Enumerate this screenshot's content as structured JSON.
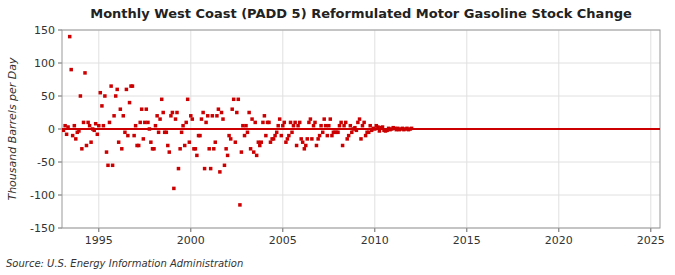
{
  "chart_data": {
    "type": "scatter",
    "title": "Monthly West Coast (PADD 5) Reformulated Motor Gasoline Stock Change",
    "ylabel": "Thousand Barrels per Day",
    "source": "Source: U.S. Energy Information Administration",
    "xlim": [
      1993.0,
      2025.5
    ],
    "ylim": [
      -150,
      150
    ],
    "xticks": [
      1995,
      2000,
      2005,
      2010,
      2015,
      2020,
      2025
    ],
    "yticks": [
      -150,
      -100,
      -50,
      0,
      50,
      100,
      150
    ],
    "grid": true,
    "series": [
      {
        "type": "scatter",
        "marker": "square",
        "color": "#cc0000",
        "x": [
          1993.08,
          1993.17,
          1993.25,
          1993.33,
          1993.42,
          1993.5,
          1993.58,
          1993.67,
          1993.75,
          1993.83,
          1993.92,
          1994.0,
          1994.08,
          1994.17,
          1994.25,
          1994.33,
          1994.42,
          1994.5,
          1994.58,
          1994.67,
          1994.75,
          1994.83,
          1994.92,
          1995.0,
          1995.08,
          1995.17,
          1995.25,
          1995.33,
          1995.42,
          1995.5,
          1995.58,
          1995.67,
          1995.75,
          1995.83,
          1995.92,
          1996.0,
          1996.08,
          1996.17,
          1996.25,
          1996.33,
          1996.42,
          1996.5,
          1996.58,
          1996.67,
          1996.75,
          1996.83,
          1996.92,
          1997.0,
          1997.08,
          1997.17,
          1997.25,
          1997.33,
          1997.42,
          1997.5,
          1997.58,
          1997.67,
          1997.75,
          1997.83,
          1997.92,
          1998.0,
          1998.08,
          1998.17,
          1998.25,
          1998.33,
          1998.42,
          1998.5,
          1998.58,
          1998.67,
          1998.75,
          1998.83,
          1998.92,
          1999.0,
          1999.08,
          1999.17,
          1999.25,
          1999.33,
          1999.42,
          1999.5,
          1999.58,
          1999.67,
          1999.75,
          1999.83,
          1999.92,
          2000.0,
          2000.08,
          2000.17,
          2000.25,
          2000.33,
          2000.42,
          2000.5,
          2000.58,
          2000.67,
          2000.75,
          2000.83,
          2000.92,
          2001.0,
          2001.08,
          2001.17,
          2001.25,
          2001.33,
          2001.42,
          2001.5,
          2001.58,
          2001.67,
          2001.75,
          2001.83,
          2001.92,
          2002.0,
          2002.08,
          2002.17,
          2002.25,
          2002.33,
          2002.42,
          2002.5,
          2002.58,
          2002.67,
          2002.75,
          2002.83,
          2002.92,
          2003.0,
          2003.08,
          2003.17,
          2003.25,
          2003.33,
          2003.42,
          2003.5,
          2003.58,
          2003.67,
          2003.75,
          2003.83,
          2003.92,
          2004.0,
          2004.08,
          2004.17,
          2004.25,
          2004.33,
          2004.42,
          2004.5,
          2004.58,
          2004.67,
          2004.75,
          2004.83,
          2004.92,
          2005.0,
          2005.08,
          2005.17,
          2005.25,
          2005.33,
          2005.42,
          2005.5,
          2005.58,
          2005.67,
          2005.75,
          2005.83,
          2005.92,
          2006.0,
          2006.08,
          2006.17,
          2006.25,
          2006.33,
          2006.42,
          2006.5,
          2006.58,
          2006.67,
          2006.75,
          2006.83,
          2006.92,
          2007.0,
          2007.08,
          2007.17,
          2007.25,
          2007.33,
          2007.42,
          2007.5,
          2007.58,
          2007.67,
          2007.75,
          2007.83,
          2007.92,
          2008.0,
          2008.08,
          2008.17,
          2008.25,
          2008.33,
          2008.42,
          2008.5,
          2008.58,
          2008.67,
          2008.75,
          2008.83,
          2008.92,
          2009.0,
          2009.08,
          2009.17,
          2009.25,
          2009.33,
          2009.42,
          2009.5,
          2009.58,
          2009.67,
          2009.75,
          2009.83,
          2009.92,
          2010.0,
          2010.08,
          2010.17,
          2010.25,
          2010.33,
          2010.42,
          2010.5,
          2010.58,
          2010.67,
          2010.75,
          2010.83,
          2010.92,
          2011.0,
          2011.08,
          2011.17,
          2011.25,
          2011.33,
          2011.42,
          2011.5,
          2011.58,
          2011.67,
          2011.75,
          2011.83,
          2011.92,
          2012.0
        ],
        "values": [
          -2,
          5,
          -8,
          3,
          140,
          90,
          -10,
          5,
          -15,
          -5,
          -3,
          50,
          -30,
          10,
          85,
          -25,
          10,
          5,
          -20,
          0,
          -2,
          8,
          -8,
          5,
          55,
          35,
          5,
          50,
          -35,
          -55,
          10,
          65,
          -55,
          20,
          50,
          60,
          -20,
          30,
          -30,
          20,
          -5,
          60,
          -10,
          40,
          65,
          65,
          -10,
          5,
          -25,
          -25,
          10,
          30,
          -15,
          10,
          30,
          10,
          0,
          -20,
          -30,
          -30,
          5,
          20,
          -5,
          15,
          45,
          25,
          -5,
          -5,
          -25,
          -35,
          20,
          25,
          -90,
          15,
          25,
          -60,
          -30,
          -5,
          5,
          -25,
          10,
          45,
          -20,
          20,
          15,
          -30,
          -30,
          -40,
          -10,
          -10,
          15,
          25,
          -60,
          10,
          20,
          -30,
          -60,
          20,
          -30,
          -20,
          20,
          30,
          -65,
          25,
          15,
          -55,
          -30,
          -40,
          -10,
          -15,
          30,
          45,
          -20,
          25,
          45,
          -115,
          -35,
          5,
          -10,
          5,
          -5,
          25,
          -30,
          15,
          -35,
          10,
          -40,
          -20,
          -25,
          -20,
          10,
          20,
          -10,
          10,
          10,
          -20,
          -15,
          -15,
          -10,
          -5,
          5,
          15,
          -10,
          5,
          10,
          -20,
          -15,
          -10,
          10,
          -5,
          5,
          10,
          -25,
          5,
          10,
          -15,
          -20,
          -30,
          -25,
          -15,
          10,
          15,
          -15,
          5,
          10,
          -25,
          -15,
          -10,
          5,
          -5,
          15,
          5,
          -10,
          5,
          15,
          -10,
          -5,
          -5,
          -5,
          -5,
          5,
          10,
          -25,
          5,
          10,
          -15,
          -10,
          5,
          -5,
          0,
          2,
          -2,
          10,
          15,
          -15,
          5,
          10,
          -10,
          -5,
          -5,
          5,
          -2,
          1,
          0,
          5,
          3,
          -3,
          2,
          3,
          -2,
          -3,
          -2,
          1,
          -1,
          0,
          2,
          1,
          -1,
          1,
          -1,
          0,
          1,
          -1,
          0,
          1,
          -1,
          0,
          1
        ]
      },
      {
        "type": "line",
        "color": "#cc0000",
        "x": [
          1993.0,
          2025.5
        ],
        "values": [
          0,
          0
        ]
      }
    ]
  }
}
